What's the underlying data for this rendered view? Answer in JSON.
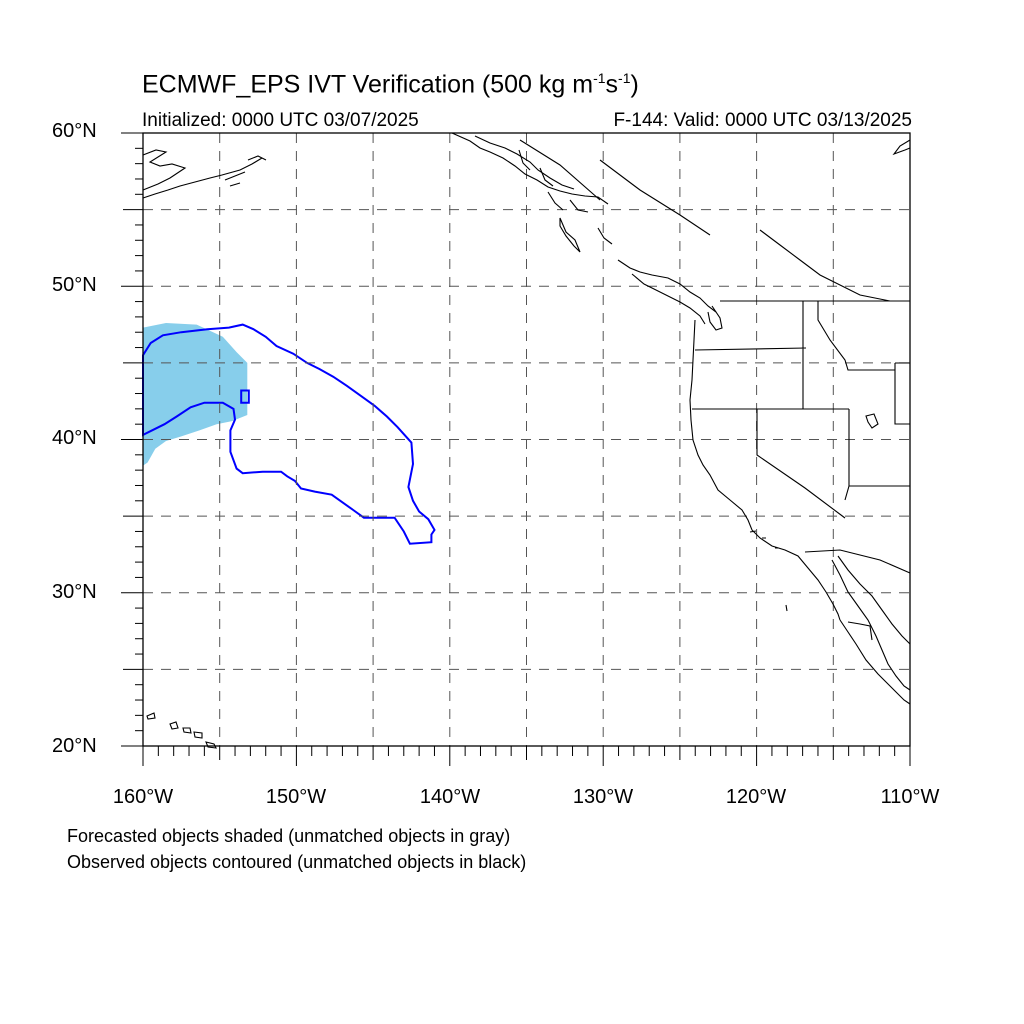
{
  "title": {
    "main": "ECMWF_EPS IVT Verification (500 kg m",
    "sup1": "-1",
    "mid": "s",
    "sup2": "-1",
    "end": ")"
  },
  "subtitle": {
    "initialized": "Initialized: 0000 UTC 03/07/2025",
    "valid": "F-144: Valid: 0000 UTC 03/13/2025"
  },
  "axes": {
    "lat_labels": [
      "60°N",
      "50°N",
      "40°N",
      "30°N",
      "20°N"
    ],
    "lon_labels": [
      "160°W",
      "150°W",
      "140°W",
      "130°W",
      "120°W",
      "110°W"
    ],
    "lat_range": [
      20,
      60
    ],
    "lon_range": [
      -160,
      -110
    ],
    "grid": "dashed every 5 degrees"
  },
  "legend": {
    "line1": "Forecasted objects shaded (unmatched objects in gray)",
    "line2": "Observed objects contoured (unmatched objects in black)"
  },
  "colors": {
    "forecast_fill": "#87ceeb",
    "observed_contour": "#0000ff",
    "coastline": "#000000",
    "grid": "#555555"
  },
  "objects": {
    "forecast_object": {
      "type": "shaded",
      "matched": true,
      "lat_lon": [
        [
          47.3,
          -160
        ],
        [
          47.6,
          -158.5
        ],
        [
          47.5,
          -156.5
        ],
        [
          46.7,
          -154.8
        ],
        [
          45.7,
          -153.9
        ],
        [
          45,
          -153.2
        ],
        [
          41.6,
          -153.2
        ],
        [
          41.2,
          -154.2
        ],
        [
          41,
          -155.2
        ],
        [
          40.6,
          -156.3
        ],
        [
          40.2,
          -157.5
        ],
        [
          39.9,
          -158.5
        ],
        [
          39.4,
          -159.2
        ],
        [
          38.5,
          -159.7
        ],
        [
          38.3,
          -160
        ]
      ]
    },
    "observed_object": {
      "type": "contour",
      "matched": true,
      "lat_lon": [
        [
          45.5,
          -160
        ],
        [
          46.3,
          -159.5
        ],
        [
          46.8,
          -158.7
        ],
        [
          47,
          -157.5
        ],
        [
          47.2,
          -155.8
        ],
        [
          47.3,
          -154.4
        ],
        [
          47.5,
          -153.5
        ],
        [
          47.2,
          -152.8
        ],
        [
          46.7,
          -152
        ],
        [
          46.1,
          -151.3
        ],
        [
          45.6,
          -150.2
        ],
        [
          45,
          -149.3
        ],
        [
          44.6,
          -148.5
        ],
        [
          44.1,
          -147.6
        ],
        [
          43.5,
          -146.7
        ],
        [
          42.7,
          -145.6
        ],
        [
          42.2,
          -144.9
        ],
        [
          41.5,
          -144.1
        ],
        [
          40.8,
          -143.4
        ],
        [
          39.8,
          -142.5
        ],
        [
          38.4,
          -142.4
        ],
        [
          36.9,
          -142.7
        ],
        [
          36,
          -142.4
        ],
        [
          35.3,
          -142
        ],
        [
          34.8,
          -141.4
        ],
        [
          34.1,
          -141
        ],
        [
          33.8,
          -141.2
        ],
        [
          33.3,
          -141.2
        ],
        [
          33.2,
          -142.6
        ],
        [
          34,
          -143
        ],
        [
          34.9,
          -143.6
        ],
        [
          34.9,
          -145.6
        ],
        [
          35.4,
          -146.3
        ],
        [
          35.9,
          -147
        ],
        [
          36.4,
          -147.7
        ],
        [
          36.6,
          -148.8
        ],
        [
          36.8,
          -149.7
        ],
        [
          37.3,
          -150.1
        ],
        [
          37.6,
          -150.6
        ],
        [
          37.9,
          -151
        ],
        [
          37.9,
          -152.2
        ],
        [
          37.8,
          -153.5
        ],
        [
          38.1,
          -153.9
        ],
        [
          39.2,
          -154.3
        ],
        [
          40.6,
          -154.3
        ],
        [
          41.3,
          -154
        ],
        [
          42,
          -154.1
        ],
        [
          42.4,
          -154.8
        ],
        [
          42.4,
          -156
        ],
        [
          42.1,
          -156.9
        ],
        [
          41.5,
          -157.8
        ],
        [
          41,
          -158.6
        ],
        [
          40.6,
          -159.4
        ],
        [
          40.3,
          -160
        ]
      ]
    },
    "observed_small_island": {
      "type": "contour",
      "lat_lon": [
        [
          43.2,
          -153.6
        ],
        [
          43.2,
          -153.1
        ],
        [
          42.4,
          -153.1
        ],
        [
          42.4,
          -153.6
        ]
      ]
    }
  }
}
